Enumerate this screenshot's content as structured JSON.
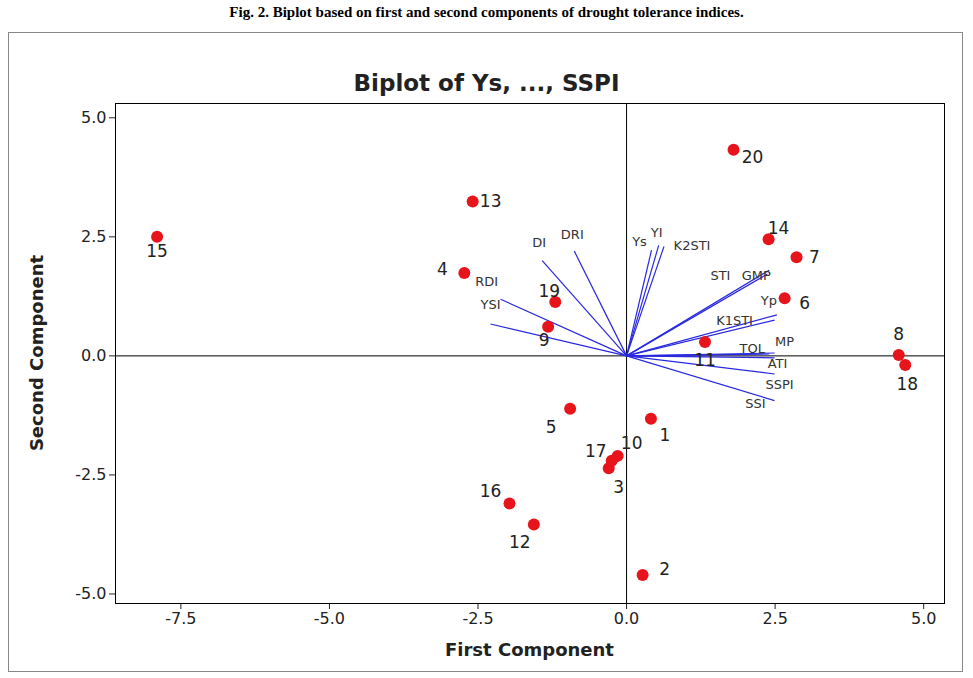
{
  "caption": "Fig. 2. Biplot based on first and second components of drought tolerance indices.",
  "chart_data": {
    "type": "biplot",
    "title": "Biplot of Ys, ..., SSPI",
    "x_label": "First Component",
    "y_label": "Second Component",
    "xlim": [
      -8.6,
      5.35
    ],
    "ylim": [
      -5.2,
      5.3
    ],
    "xticks": [
      -7.5,
      {
        "value": -5,
        "label": "-5.0"
      },
      -2.5,
      {
        "value": 0,
        "label": "0.0"
      },
      2.5,
      {
        "value": 5,
        "label": "5.0"
      }
    ],
    "yticks": [
      {
        "value": -5,
        "label": "-5.0"
      },
      -2.5,
      {
        "value": 0,
        "label": "0.0"
      },
      2.5,
      {
        "value": 5,
        "label": "5.0"
      }
    ],
    "grid": false,
    "points": {
      "labels": [
        "1",
        "2",
        "3",
        "4",
        "5",
        "6",
        "7",
        "8",
        "9",
        "10",
        "11",
        "12",
        "13",
        "14",
        "15",
        "16",
        "17",
        "18",
        "19",
        "20"
      ],
      "x": [
        0.41,
        0.27,
        -0.3,
        -2.73,
        -0.95,
        2.66,
        2.86,
        4.58,
        -1.32,
        -0.15,
        1.32,
        -1.56,
        -2.59,
        2.39,
        -7.9,
        -1.97,
        -0.25,
        4.69,
        -1.2,
        1.8
      ],
      "y": [
        -1.32,
        -4.6,
        -2.36,
        1.74,
        -1.11,
        1.21,
        2.07,
        0.02,
        0.61,
        -2.1,
        0.29,
        -3.54,
        3.24,
        2.45,
        2.5,
        -3.1,
        -2.2,
        -0.19,
        1.13,
        4.33
      ],
      "color": "#e8141b",
      "marker": "circle"
    },
    "vectors": {
      "labels": [
        "Ys",
        "YI",
        "K2STI",
        "STI",
        "GMP",
        "Yp",
        "K1STI",
        "MP",
        "TOL",
        "ATI",
        "SSPI",
        "SSI",
        "DI",
        "DRI",
        "RDI",
        "YSI"
      ],
      "x": [
        0.42,
        0.54,
        0.63,
        2.37,
        2.4,
        2.53,
        2.49,
        2.49,
        2.4,
        2.49,
        2.49,
        2.49,
        -1.42,
        -0.88,
        -2.12,
        -2.29
      ],
      "y": [
        2.22,
        2.32,
        2.3,
        1.72,
        1.8,
        0.86,
        0.75,
        0.06,
        0.04,
        -0.04,
        -0.38,
        -0.94,
        2.0,
        2.2,
        1.19,
        0.67
      ],
      "color": "#2828e0",
      "line_style": "solid"
    }
  }
}
